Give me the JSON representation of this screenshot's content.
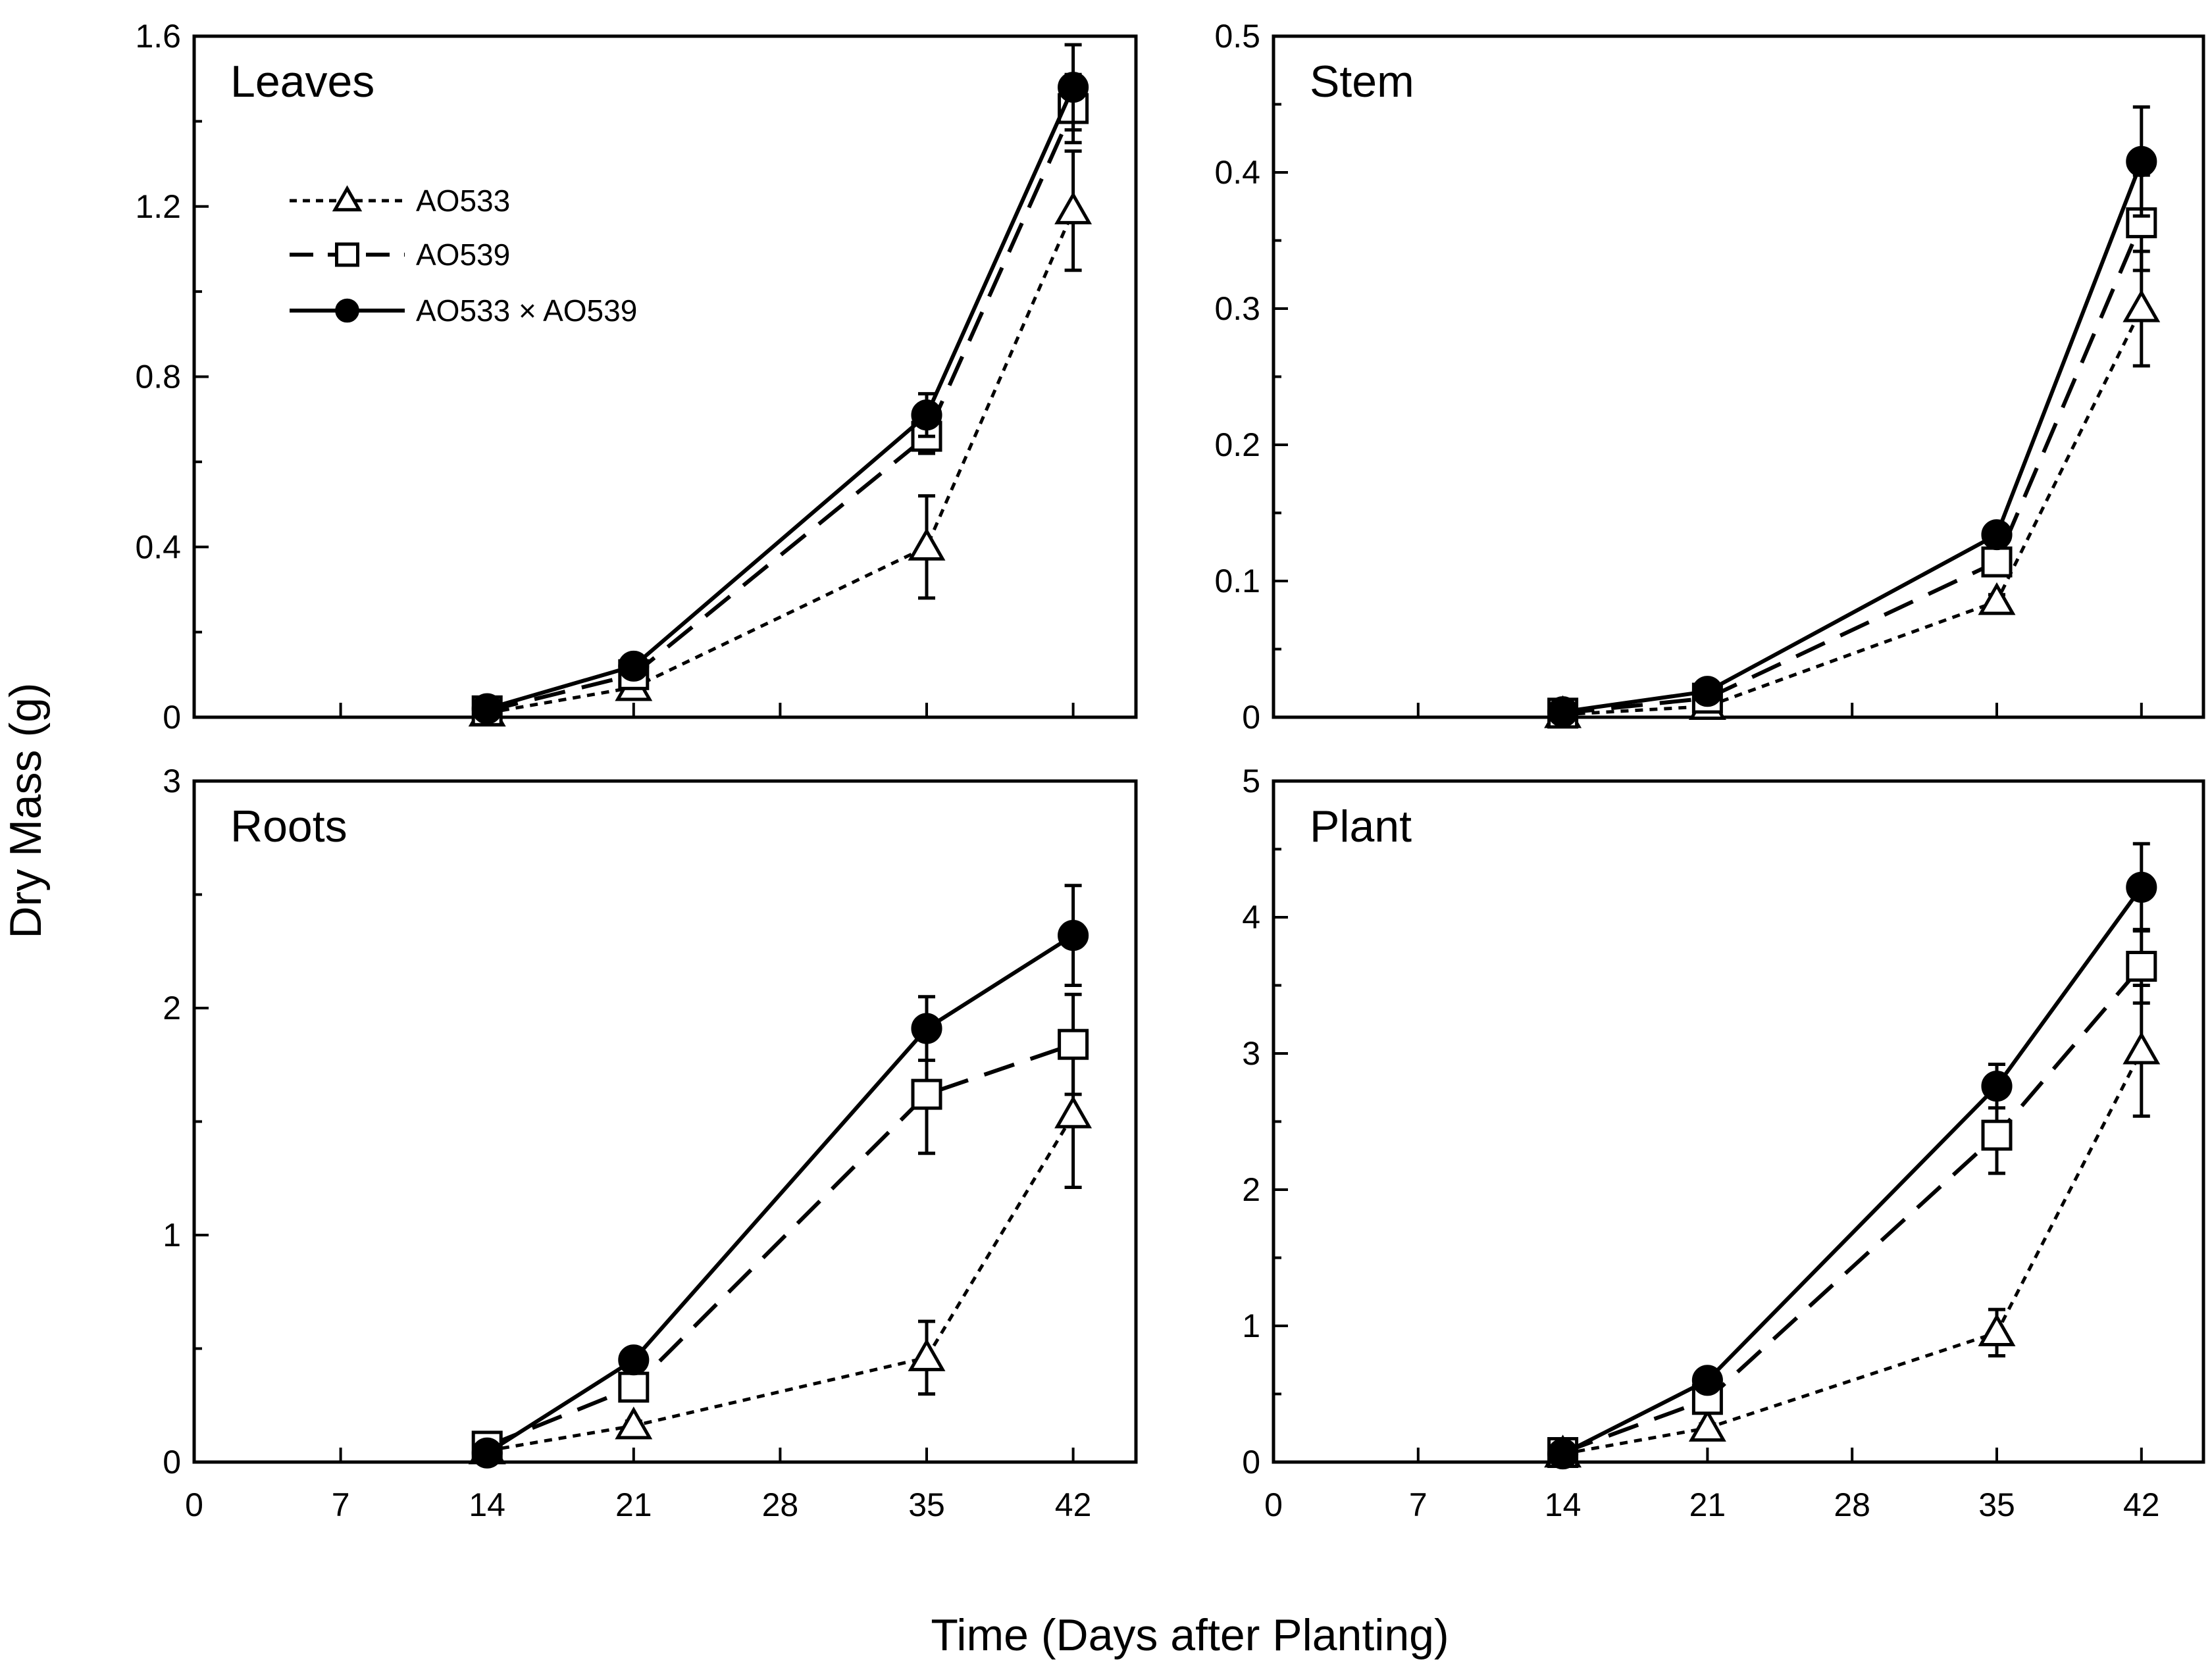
{
  "figure": {
    "ylabel": "Dry Mass (g)",
    "xlabel": "Time (Days after Planting)"
  },
  "legend": [
    {
      "name": "AO533",
      "marker": "triangle-open",
      "line": "dotted"
    },
    {
      "name": "AO539",
      "marker": "square-open",
      "line": "dashed"
    },
    {
      "name": "AO533 × AO539",
      "marker": "circle-filled",
      "line": "solid"
    }
  ],
  "colors": {
    "ink": "#000000",
    "background": "#ffffff",
    "open_marker_fill": "#ffffff"
  },
  "chart_data": [
    {
      "type": "line",
      "title": "Leaves",
      "x": [
        14,
        21,
        35,
        42
      ],
      "xlim": [
        0,
        45
      ],
      "xticks": [
        "0",
        "7",
        "14",
        "21",
        "28",
        "35",
        "42"
      ],
      "ylim": [
        0,
        1.6
      ],
      "yticks": [
        "0",
        "0.4",
        "0.8",
        "1.2",
        "1.6"
      ],
      "series": [
        {
          "name": "AO533",
          "values": [
            0.01,
            0.07,
            0.4,
            1.19
          ],
          "errors": [
            0.0,
            0.01,
            0.12,
            0.14
          ]
        },
        {
          "name": "AO539",
          "values": [
            0.015,
            0.1,
            0.66,
            1.43
          ],
          "errors": [
            0.0,
            0.01,
            0.04,
            0.08
          ]
        },
        {
          "name": "AO533 × AO539",
          "values": [
            0.02,
            0.12,
            0.71,
            1.48
          ],
          "errors": [
            0.0,
            0.01,
            0.05,
            0.1
          ]
        }
      ]
    },
    {
      "type": "line",
      "title": "Stem",
      "x": [
        14,
        21,
        35,
        42
      ],
      "xlim": [
        0,
        45
      ],
      "xticks": [
        "0",
        "7",
        "14",
        "21",
        "28",
        "35",
        "42"
      ],
      "ylim": [
        0,
        0.5
      ],
      "yticks": [
        "0",
        "0.1",
        "0.2",
        "0.3",
        "0.4",
        "0.5"
      ],
      "series": [
        {
          "name": "AO533",
          "values": [
            0.002,
            0.008,
            0.085,
            0.3
          ],
          "errors": [
            0.0,
            0.001,
            0.005,
            0.042
          ]
        },
        {
          "name": "AO539",
          "values": [
            0.003,
            0.014,
            0.114,
            0.363
          ],
          "errors": [
            0.0,
            0.002,
            0.008,
            0.035
          ]
        },
        {
          "name": "AO533 × AO539",
          "values": [
            0.004,
            0.019,
            0.134,
            0.408
          ],
          "errors": [
            0.0,
            0.002,
            0.008,
            0.04
          ]
        }
      ]
    },
    {
      "type": "line",
      "title": "Roots",
      "x": [
        14,
        21,
        35,
        42
      ],
      "xlim": [
        0,
        45
      ],
      "xticks": [
        "0",
        "7",
        "14",
        "21",
        "28",
        "35",
        "42"
      ],
      "ylim": [
        0,
        3
      ],
      "yticks": [
        "0",
        "1",
        "2",
        "3"
      ],
      "series": [
        {
          "name": "AO533",
          "values": [
            0.05,
            0.16,
            0.46,
            1.53
          ],
          "errors": [
            0.0,
            0.02,
            0.16,
            0.32
          ]
        },
        {
          "name": "AO539",
          "values": [
            0.07,
            0.33,
            1.62,
            1.84
          ],
          "errors": [
            0.0,
            0.03,
            0.26,
            0.22
          ]
        },
        {
          "name": "AO533 × AO539",
          "values": [
            0.04,
            0.45,
            1.91,
            2.32
          ],
          "errors": [
            0.0,
            0.03,
            0.14,
            0.22
          ]
        }
      ]
    },
    {
      "type": "line",
      "title": "Plant",
      "x": [
        14,
        21,
        35,
        42
      ],
      "xlim": [
        0,
        45
      ],
      "xticks": [
        "0",
        "7",
        "14",
        "21",
        "28",
        "35",
        "42"
      ],
      "ylim": [
        0,
        5
      ],
      "yticks": [
        "0",
        "1",
        "2",
        "3",
        "4",
        "5"
      ],
      "series": [
        {
          "name": "AO533",
          "values": [
            0.06,
            0.25,
            0.95,
            3.02
          ],
          "errors": [
            0.0,
            0.03,
            0.17,
            0.48
          ]
        },
        {
          "name": "AO539",
          "values": [
            0.07,
            0.46,
            2.4,
            3.64
          ],
          "errors": [
            0.0,
            0.05,
            0.28,
            0.27
          ]
        },
        {
          "name": "AO533 × AO539",
          "values": [
            0.06,
            0.6,
            2.76,
            4.22
          ],
          "errors": [
            0.0,
            0.05,
            0.16,
            0.32
          ]
        }
      ]
    }
  ]
}
